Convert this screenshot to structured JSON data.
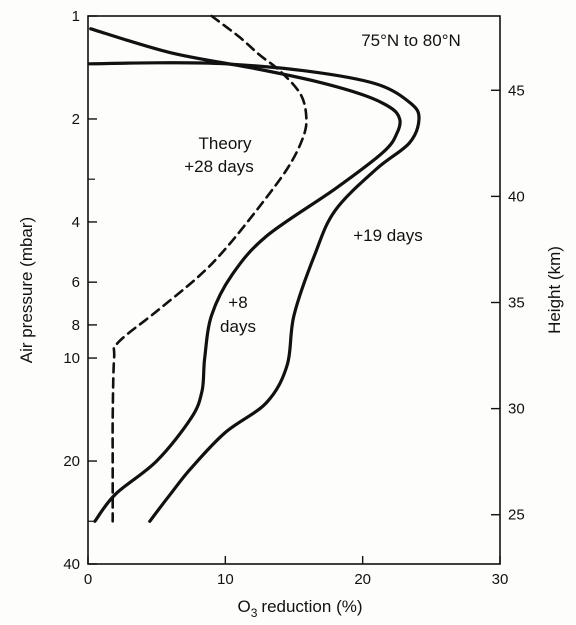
{
  "chart_data": {
    "type": "line",
    "title": "75°N to 80°N",
    "xlabel": "reduction (%)",
    "xlabel_chem": "O",
    "xlabel_sub": "3",
    "ylabel_left": "Air pressure (mbar)",
    "ylabel_right": "Height (km)",
    "xlim": [
      0,
      30
    ],
    "x_ticks": [
      0,
      10,
      20,
      30
    ],
    "y_left_scale": "log",
    "y_left_reversed": true,
    "y_left_range": [
      1,
      40
    ],
    "y_left_ticks": [
      1,
      2,
      4,
      6,
      8,
      10,
      20,
      40
    ],
    "y_left_minor_ticks": [
      3,
      30
    ],
    "y_right_ticks": [
      25,
      30,
      35,
      40,
      45
    ],
    "grid": false,
    "annotations": [
      {
        "id": "theory_line1",
        "text": "Theory"
      },
      {
        "id": "theory_line2",
        "text": "+28 days"
      },
      {
        "id": "d19",
        "text": "+19 days"
      },
      {
        "id": "d8_line1",
        "text": "+8"
      },
      {
        "id": "d8_line2",
        "text": "days"
      }
    ],
    "series": [
      {
        "id": "theory",
        "style": "dashed",
        "points": [
          [
            9,
            1.0
          ],
          [
            11,
            1.15
          ],
          [
            12.5,
            1.3
          ],
          [
            14,
            1.45
          ],
          [
            15.5,
            1.7
          ],
          [
            15.9,
            2.0
          ],
          [
            15.6,
            2.3
          ],
          [
            14.5,
            2.8
          ],
          [
            12.5,
            3.6
          ],
          [
            10,
            4.8
          ],
          [
            8,
            5.8
          ],
          [
            5,
            7.3
          ],
          [
            2.2,
            9.0
          ],
          [
            1.9,
            10
          ],
          [
            1.8,
            15
          ],
          [
            1.8,
            20
          ],
          [
            1.8,
            30
          ]
        ]
      },
      {
        "id": "plus8",
        "style": "solid",
        "points": [
          [
            0.2,
            1.09
          ],
          [
            6,
            1.28
          ],
          [
            12,
            1.42
          ],
          [
            16.5,
            1.55
          ],
          [
            20,
            1.7
          ],
          [
            22,
            1.85
          ],
          [
            22.7,
            2.0
          ],
          [
            22.5,
            2.2
          ],
          [
            21.5,
            2.5
          ],
          [
            18,
            3.2
          ],
          [
            13,
            4.4
          ],
          [
            10.5,
            5.7
          ],
          [
            9,
            7.5
          ],
          [
            8.5,
            10
          ],
          [
            8.3,
            12.5
          ],
          [
            7.5,
            15
          ],
          [
            5,
            20
          ],
          [
            2,
            25
          ],
          [
            0.5,
            30
          ]
        ]
      },
      {
        "id": "plus19",
        "style": "solid",
        "points": [
          [
            0.1,
            1.38
          ],
          [
            5,
            1.37
          ],
          [
            10,
            1.38
          ],
          [
            16,
            1.45
          ],
          [
            21,
            1.58
          ],
          [
            23.5,
            1.8
          ],
          [
            24.1,
            2.0
          ],
          [
            23.4,
            2.35
          ],
          [
            21,
            2.8
          ],
          [
            18,
            3.7
          ],
          [
            16.5,
            5.0
          ],
          [
            15,
            7.5
          ],
          [
            14.5,
            10.5
          ],
          [
            13,
            13.5
          ],
          [
            10,
            16.5
          ],
          [
            7.5,
            21
          ],
          [
            6,
            25
          ],
          [
            4.5,
            30
          ]
        ]
      }
    ]
  }
}
